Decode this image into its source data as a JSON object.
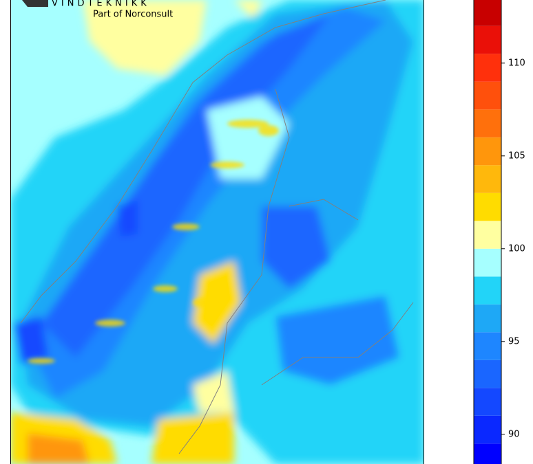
{
  "logo": {
    "name": "VINDTEKNIKK",
    "tagline": "Part of Norconsult"
  },
  "colorbar": {
    "levels": [
      88,
      89.5,
      91,
      92.5,
      94,
      95.5,
      97,
      98.5,
      100,
      101.5,
      103,
      104.5,
      106,
      107.5,
      109,
      110.5,
      112,
      113.5
    ],
    "colors": [
      "#0000ff",
      "#0a28ff",
      "#1448ff",
      "#1a66ff",
      "#1e86ff",
      "#1ea8f6",
      "#22d4f8",
      "#a6ffff",
      "#ffffa0",
      "#ffdc00",
      "#ffb80c",
      "#ff960c",
      "#ff700c",
      "#ff500c",
      "#ff300c",
      "#ea1008",
      "#c80000"
    ],
    "lim": [
      88.4,
      113.4
    ],
    "ticks": [
      90,
      95,
      100,
      105,
      110
    ]
  }
}
